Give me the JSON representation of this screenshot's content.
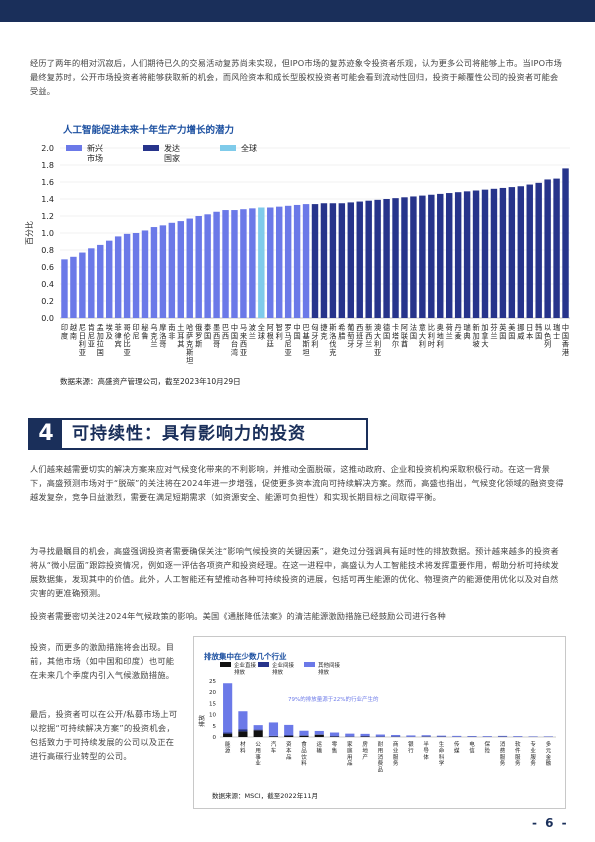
{
  "intro_paragraph": "经历了两年的相对沉寂后，人们期待已久的交易活动复苏尚未实现，但IPO市场的复苏迹象令投资者乐观，认为更多公司将能够上市。当IPO市场最终复苏时，公开市场投资者将能够获取新的机会，而风险资本和成长型股权投资者可能会看到流动性回归，投资于颠覆性公司的投资者可能会受益。",
  "chart1_title": "人工智能促进未来十年生产力增长的潜力",
  "chart1_source": "数据来源：高盛资产管理公司，截至2023年10月29日",
  "section": {
    "number": "4",
    "title": "可持续性：具有影响力的投资"
  },
  "para2": "人们越来越需要切实的解决方案来应对气候变化带来的不利影响，并推动全面脱碳，这推动政府、企业和投资机构采取积极行动。在这一背景下，高盛预测市场对于“脱碳”的关注将在2024年进一步增强，促使更多资本流向可持续解决方案。然而，高盛也指出，气候变化领域的融资变得越发复杂，竞争日益激烈，需要在满足短期需求（如资源安全、能源可负担性）和实现长期目标之间取得平衡。",
  "para3": "为寻找最瞩目的机会，高盛强调投资者需要确保关注“影响气候投资的关键因素”，避免过分强调具有延时性的排放数据。预计越来越多的投资者将从“微小层面”跟踪投资情况，例如逐一评估各项资产和投资经理。在这一进程中，高盛认为人工智能技术将发挥重要作用，帮助分析可持续发展数据集，发现其中的价值。此外，人工智能还有望推动各种可持续投资的进展，包括可再生能源的优化、物理资产的能源使用优化以及对自然灾害的更准确预测。",
  "para4": "投资者需要密切关注2024年气候政策的影响。美国《通胀降低法案》的清洁能源激励措施已经鼓励公司进行各种",
  "left_col": [
    "投资，而更多的激励措施将会出现。目前，其他市场（如中国和印度）也可能在未来几个季度内引入气候激励措施。",
    "最后，投资者可以在公开/私募市场上可以挖掘“可持续解决方案”的投资机会，包括致力于可持续发展的公司以及正在进行高碳行业转型的公司。"
  ],
  "chart2_title": "排放集中在少数几个行业",
  "chart2_source": "数据来源：MSCI，截至2022年11月",
  "page_number": "- 6 -",
  "colors": {
    "navy": "#1a2f5a",
    "emerging": "#6b79e8",
    "developed": "#27348b",
    "global": "#7fcbea",
    "accent_blue": "#1b4fa0"
  },
  "chart_data": [
    {
      "type": "bar",
      "title": "人工智能促进未来十年生产力增长的潜力",
      "ylabel": "百分比",
      "ylim": [
        0,
        2.0
      ],
      "yticks": [
        "0.0",
        "0.2",
        "0.4",
        "0.6",
        "0.8",
        "1.0",
        "1.2",
        "1.4",
        "1.6",
        "1.8",
        "2.0"
      ],
      "legend": [
        {
          "name": "新兴市场",
          "color": "#6b79e8"
        },
        {
          "name": "发达国家",
          "color": "#27348b"
        },
        {
          "name": "全球",
          "color": "#7fcbea"
        }
      ],
      "legend_position": "top-left",
      "categories": [
        "印度",
        "越南",
        "尼日利亚",
        "肯尼亚",
        "孟加拉国",
        "埃及",
        "菲律宾",
        "哥伦比亚",
        "印尼",
        "秘鲁",
        "乌克兰",
        "摩洛哥",
        "南非",
        "土耳其",
        "哈萨克斯坦",
        "俄罗斯",
        "泰国",
        "墨西哥",
        "巴西",
        "中国台湾",
        "马来西亚",
        "波兰",
        "全球",
        "阿根廷",
        "智利",
        "罗马尼亚",
        "中国",
        "巴基斯坦",
        "匈牙利",
        "捷克",
        "斯洛伐克",
        "希腊",
        "葡萄牙",
        "西班牙",
        "新西兰",
        "澳大利亚",
        "德国",
        "卡塔尔",
        "阿联酋",
        "法国",
        "意大利",
        "比利时",
        "奥地利",
        "荷兰",
        "丹麦",
        "瑞典",
        "新加坡",
        "加拿大",
        "芬兰",
        "英国",
        "美国",
        "挪威",
        "日本",
        "韩国",
        "以色列",
        "瑞士",
        "中国香港"
      ],
      "values": [
        0.69,
        0.72,
        0.77,
        0.82,
        0.86,
        0.91,
        0.96,
        0.99,
        1.0,
        1.03,
        1.07,
        1.09,
        1.12,
        1.14,
        1.17,
        1.2,
        1.22,
        1.25,
        1.27,
        1.27,
        1.28,
        1.29,
        1.3,
        1.3,
        1.31,
        1.32,
        1.33,
        1.34,
        1.34,
        1.35,
        1.35,
        1.35,
        1.36,
        1.37,
        1.38,
        1.39,
        1.4,
        1.41,
        1.42,
        1.43,
        1.44,
        1.45,
        1.46,
        1.47,
        1.48,
        1.49,
        1.5,
        1.51,
        1.52,
        1.53,
        1.54,
        1.55,
        1.57,
        1.59,
        1.63,
        1.64,
        1.76
      ],
      "groups": [
        "em",
        "em",
        "em",
        "em",
        "em",
        "em",
        "em",
        "em",
        "em",
        "em",
        "em",
        "em",
        "em",
        "em",
        "em",
        "em",
        "em",
        "em",
        "em",
        "em",
        "em",
        "em",
        "global",
        "em",
        "em",
        "em",
        "em",
        "em",
        "dev",
        "dev",
        "dev",
        "dev",
        "dev",
        "dev",
        "dev",
        "dev",
        "dev",
        "dev",
        "dev",
        "dev",
        "dev",
        "dev",
        "dev",
        "dev",
        "dev",
        "dev",
        "dev",
        "dev",
        "dev",
        "dev",
        "dev",
        "dev",
        "dev",
        "dev",
        "dev",
        "dev",
        "dev"
      ]
    },
    {
      "type": "bar",
      "title": "排放集中在少数几个行业",
      "ylabel": "排放",
      "ylim": [
        0,
        25
      ],
      "yticks": [
        "0",
        "5",
        "10",
        "15",
        "20",
        "25"
      ],
      "legend": [
        {
          "name": "企业直接排放",
          "color": "#111111"
        },
        {
          "name": "企业间接排放",
          "color": "#27348b"
        },
        {
          "name": "其他间接排放",
          "color": "#6b79e8"
        }
      ],
      "annotation": "79%的排放量源于22%的行业产生的",
      "categories": [
        "能源",
        "材料",
        "公用事业",
        "汽车",
        "资本品",
        "食品饮料",
        "运输",
        "零售",
        "家庭用品",
        "房地产",
        "耐用消费品",
        "商业服务",
        "银行",
        "半导体",
        "生命科学",
        "传媒",
        "电信",
        "保险",
        "消费服务",
        "软件服务",
        "专业服务",
        "多元金融"
      ],
      "series": [
        {
          "name": "企业直接排放",
          "values": [
            1.5,
            2.5,
            3,
            0.3,
            0.5,
            0.5,
            1,
            0.2,
            0.1,
            0.2,
            0.1,
            0.1,
            0.05,
            0.1,
            0.1,
            0.05,
            0.05,
            0.05,
            0.1,
            0.05,
            0.05,
            0.05
          ]
        },
        {
          "name": "企业间接排放",
          "values": [
            0.5,
            1.0,
            0.3,
            0.2,
            0.4,
            0.3,
            0.2,
            0.2,
            0.2,
            0.2,
            0.1,
            0.1,
            0.05,
            0.2,
            0.1,
            0.05,
            0.1,
            0.05,
            0.1,
            0.05,
            0.05,
            0.05
          ]
        },
        {
          "name": "其他间接排放",
          "values": [
            22,
            8,
            2,
            6,
            4.5,
            2,
            1.5,
            1.6,
            1.2,
            1.0,
            0.9,
            0.7,
            0.6,
            0.5,
            0.4,
            0.4,
            0.3,
            0.3,
            0.3,
            0.3,
            0.2,
            0.2
          ]
        }
      ]
    }
  ]
}
